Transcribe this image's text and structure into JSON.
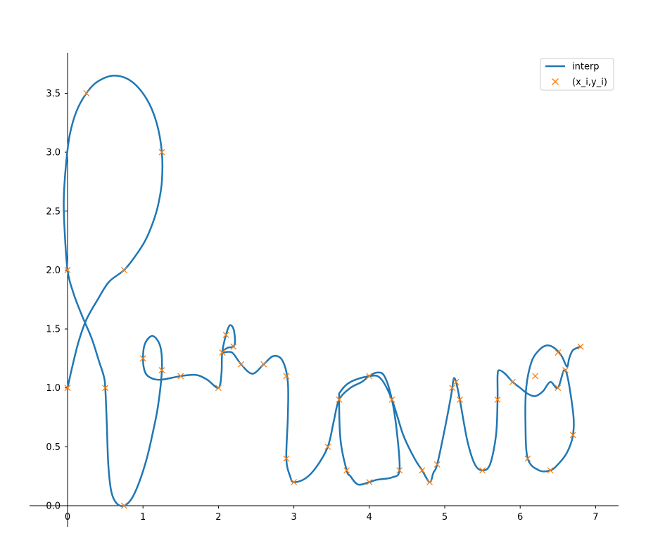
{
  "chart_data": {
    "type": "line",
    "title": "",
    "xlabel": "",
    "ylabel": "",
    "xlim": [
      -0.5,
      7.3
    ],
    "ylim": [
      0.0,
      3.85
    ],
    "xticks": [
      0,
      1,
      2,
      3,
      4,
      5,
      6,
      7
    ],
    "xtick_labels": [
      "0",
      "1",
      "2",
      "3",
      "4",
      "5",
      "6",
      "7"
    ],
    "yticks": [
      0.0,
      0.5,
      1.0,
      1.5,
      2.0,
      2.5,
      3.0,
      3.5
    ],
    "ytick_labels": [
      "0.0",
      "0.5",
      "1.0",
      "1.5",
      "2.0",
      "2.5",
      "3.0",
      "3.5"
    ],
    "spines": "center-zero",
    "grid": false,
    "legend_position": "top-right",
    "series": [
      {
        "name": "interp",
        "kind": "line",
        "color": "#1f77b4",
        "points": [
          [
            0.0,
            1.0
          ],
          [
            0.07,
            1.2
          ],
          [
            0.15,
            1.4
          ],
          [
            0.25,
            1.58
          ],
          [
            0.4,
            1.75
          ],
          [
            0.55,
            1.9
          ],
          [
            0.75,
            2.0
          ],
          [
            0.9,
            2.12
          ],
          [
            1.03,
            2.25
          ],
          [
            1.13,
            2.4
          ],
          [
            1.2,
            2.55
          ],
          [
            1.25,
            2.75
          ],
          [
            1.25,
            3.0
          ],
          [
            1.18,
            3.25
          ],
          [
            1.05,
            3.45
          ],
          [
            0.85,
            3.6
          ],
          [
            0.62,
            3.65
          ],
          [
            0.4,
            3.6
          ],
          [
            0.25,
            3.5
          ],
          [
            0.12,
            3.35
          ],
          [
            0.03,
            3.15
          ],
          [
            -0.02,
            2.9
          ],
          [
            -0.05,
            2.6
          ],
          [
            -0.04,
            2.35
          ],
          [
            0.0,
            2.0
          ],
          [
            0.08,
            1.8
          ],
          [
            0.2,
            1.6
          ],
          [
            0.32,
            1.42
          ],
          [
            0.42,
            1.22
          ],
          [
            0.48,
            1.1
          ],
          [
            0.5,
            1.0
          ],
          [
            0.52,
            0.7
          ],
          [
            0.54,
            0.35
          ],
          [
            0.58,
            0.12
          ],
          [
            0.65,
            0.02
          ],
          [
            0.75,
            0.0
          ],
          [
            0.85,
            0.06
          ],
          [
            0.95,
            0.2
          ],
          [
            1.05,
            0.4
          ],
          [
            1.13,
            0.62
          ],
          [
            1.2,
            0.85
          ],
          [
            1.25,
            1.15
          ],
          [
            1.23,
            1.35
          ],
          [
            1.13,
            1.44
          ],
          [
            1.03,
            1.38
          ],
          [
            1.0,
            1.25
          ],
          [
            1.03,
            1.13
          ],
          [
            1.12,
            1.08
          ],
          [
            1.25,
            1.07
          ],
          [
            1.5,
            1.1
          ],
          [
            1.7,
            1.11
          ],
          [
            1.85,
            1.07
          ],
          [
            2.0,
            1.0
          ],
          [
            2.04,
            1.12
          ],
          [
            2.05,
            1.3
          ],
          [
            2.1,
            1.45
          ],
          [
            2.15,
            1.53
          ],
          [
            2.2,
            1.5
          ],
          [
            2.22,
            1.4
          ],
          [
            2.2,
            1.35
          ],
          [
            2.12,
            1.34
          ],
          [
            2.05,
            1.3
          ],
          [
            2.18,
            1.3
          ],
          [
            2.3,
            1.2
          ],
          [
            2.45,
            1.12
          ],
          [
            2.6,
            1.2
          ],
          [
            2.73,
            1.27
          ],
          [
            2.85,
            1.23
          ],
          [
            2.92,
            1.05
          ],
          [
            2.92,
            0.75
          ],
          [
            2.9,
            0.4
          ],
          [
            2.95,
            0.25
          ],
          [
            3.0,
            0.2
          ],
          [
            3.15,
            0.23
          ],
          [
            3.3,
            0.33
          ],
          [
            3.45,
            0.5
          ],
          [
            3.53,
            0.72
          ],
          [
            3.6,
            0.9
          ],
          [
            3.75,
            1.0
          ],
          [
            3.9,
            1.05
          ],
          [
            4.0,
            1.1
          ],
          [
            4.1,
            1.13
          ],
          [
            4.2,
            1.1
          ],
          [
            4.3,
            0.9
          ],
          [
            4.37,
            0.6
          ],
          [
            4.4,
            0.3
          ],
          [
            4.3,
            0.24
          ],
          [
            4.1,
            0.22
          ],
          [
            4.0,
            0.2
          ],
          [
            3.85,
            0.18
          ],
          [
            3.75,
            0.25
          ],
          [
            3.7,
            0.3
          ],
          [
            3.62,
            0.55
          ],
          [
            3.6,
            0.9
          ],
          [
            3.62,
            0.97
          ],
          [
            3.75,
            1.05
          ],
          [
            4.0,
            1.1
          ],
          [
            4.15,
            1.08
          ],
          [
            4.3,
            0.9
          ],
          [
            4.45,
            0.6
          ],
          [
            4.6,
            0.4
          ],
          [
            4.7,
            0.3
          ],
          [
            4.8,
            0.2
          ],
          [
            4.85,
            0.28
          ],
          [
            4.9,
            0.35
          ],
          [
            5.0,
            0.65
          ],
          [
            5.08,
            0.92
          ],
          [
            5.1,
            1.0
          ],
          [
            5.12,
            1.08
          ],
          [
            5.15,
            1.05
          ],
          [
            5.2,
            0.9
          ],
          [
            5.3,
            0.55
          ],
          [
            5.4,
            0.35
          ],
          [
            5.5,
            0.3
          ],
          [
            5.6,
            0.35
          ],
          [
            5.68,
            0.6
          ],
          [
            5.7,
            0.9
          ],
          [
            5.7,
            1.1
          ],
          [
            5.72,
            1.15
          ],
          [
            5.8,
            1.12
          ],
          [
            5.9,
            1.05
          ],
          [
            6.0,
            1.0
          ],
          [
            6.1,
            0.95
          ],
          [
            6.2,
            0.93
          ],
          [
            6.3,
            0.97
          ],
          [
            6.4,
            1.05
          ],
          [
            6.5,
            1.0
          ],
          [
            6.6,
            1.15
          ],
          [
            6.7,
            0.8
          ],
          [
            6.7,
            0.6
          ],
          [
            6.62,
            0.45
          ],
          [
            6.5,
            0.35
          ],
          [
            6.4,
            0.3
          ],
          [
            6.25,
            0.3
          ],
          [
            6.1,
            0.4
          ],
          [
            6.07,
            0.7
          ],
          [
            6.08,
            1.0
          ],
          [
            6.15,
            1.22
          ],
          [
            6.25,
            1.32
          ],
          [
            6.35,
            1.36
          ],
          [
            6.45,
            1.34
          ],
          [
            6.55,
            1.27
          ],
          [
            6.62,
            1.18
          ],
          [
            6.65,
            1.25
          ],
          [
            6.7,
            1.32
          ],
          [
            6.8,
            1.35
          ]
        ]
      },
      {
        "name": "(x_i,y_i)",
        "kind": "scatter",
        "marker": "x",
        "color": "#ff7f0e",
        "points": [
          [
            0.0,
            1.0
          ],
          [
            0.25,
            3.5
          ],
          [
            1.25,
            3.0
          ],
          [
            0.75,
            2.0
          ],
          [
            0.0,
            2.0
          ],
          [
            0.5,
            1.0
          ],
          [
            0.75,
            0.0
          ],
          [
            1.0,
            1.25
          ],
          [
            1.25,
            1.15
          ],
          [
            1.5,
            1.1
          ],
          [
            2.0,
            1.0
          ],
          [
            2.05,
            1.3
          ],
          [
            2.1,
            1.45
          ],
          [
            2.2,
            1.35
          ],
          [
            2.3,
            1.2
          ],
          [
            2.6,
            1.2
          ],
          [
            2.9,
            1.1
          ],
          [
            2.9,
            0.4
          ],
          [
            3.0,
            0.2
          ],
          [
            3.45,
            0.5
          ],
          [
            3.6,
            0.9
          ],
          [
            3.7,
            0.3
          ],
          [
            4.0,
            0.2
          ],
          [
            4.0,
            1.1
          ],
          [
            4.3,
            0.9
          ],
          [
            4.4,
            0.3
          ],
          [
            4.7,
            0.3
          ],
          [
            4.8,
            0.2
          ],
          [
            4.9,
            0.35
          ],
          [
            5.1,
            1.0
          ],
          [
            5.15,
            1.05
          ],
          [
            5.2,
            0.9
          ],
          [
            5.5,
            0.3
          ],
          [
            5.7,
            0.9
          ],
          [
            5.9,
            1.05
          ],
          [
            6.2,
            1.1
          ],
          [
            6.1,
            0.4
          ],
          [
            6.4,
            0.3
          ],
          [
            6.7,
            0.6
          ],
          [
            6.6,
            1.15
          ],
          [
            6.5,
            1.0
          ],
          [
            6.5,
            1.3
          ],
          [
            6.8,
            1.35
          ]
        ]
      }
    ]
  }
}
